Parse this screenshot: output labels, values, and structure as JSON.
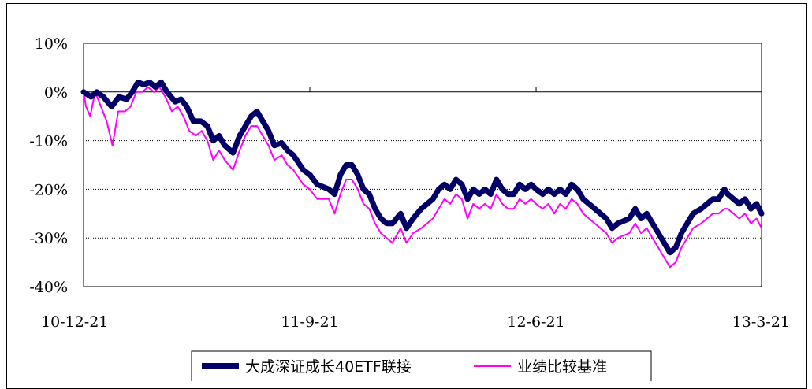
{
  "chart_data": {
    "type": "line",
    "title": "",
    "xlabel": "",
    "ylabel": "",
    "y_unit": "%",
    "ylim": [
      -40,
      10
    ],
    "yticks": [
      10,
      0,
      -10,
      -20,
      -30,
      -40
    ],
    "ytick_labels": [
      "10%",
      "0%",
      "-10%",
      "-20%",
      "-30%",
      "-40%"
    ],
    "xlim": [
      "2010-12-21",
      "2013-03-21"
    ],
    "xticks": [
      "2010-12-21",
      "2011-09-21",
      "2012-06-21",
      "2013-03-21"
    ],
    "xtick_labels": [
      "10-12-21",
      "11-9-21",
      "12-6-21",
      "13-3-21"
    ],
    "grid": {
      "horizontal": true,
      "vertical": false
    },
    "legend_position": "bottom",
    "series": [
      {
        "name": "大成深证成长40ETF联接",
        "color": "#000066",
        "points": [
          [
            "2010-12-21",
            0
          ],
          [
            "2010-12-30",
            -1
          ],
          [
            "2011-01-06",
            0
          ],
          [
            "2011-01-14",
            -1
          ],
          [
            "2011-01-24",
            -3
          ],
          [
            "2011-02-02",
            -1
          ],
          [
            "2011-02-11",
            -1.5
          ],
          [
            "2011-02-18",
            0
          ],
          [
            "2011-02-25",
            2
          ],
          [
            "2011-03-04",
            1.5
          ],
          [
            "2011-03-11",
            2
          ],
          [
            "2011-03-18",
            1
          ],
          [
            "2011-03-25",
            2
          ],
          [
            "2011-04-01",
            0
          ],
          [
            "2011-04-11",
            -2
          ],
          [
            "2011-04-18",
            -1.5
          ],
          [
            "2011-04-25",
            -3
          ],
          [
            "2011-05-03",
            -6
          ],
          [
            "2011-05-12",
            -6
          ],
          [
            "2011-05-20",
            -7
          ],
          [
            "2011-05-27",
            -10
          ],
          [
            "2011-06-03",
            -9
          ],
          [
            "2011-06-10",
            -11
          ],
          [
            "2011-06-20",
            -12.5
          ],
          [
            "2011-06-28",
            -9
          ],
          [
            "2011-07-05",
            -7
          ],
          [
            "2011-07-12",
            -5
          ],
          [
            "2011-07-19",
            -4
          ],
          [
            "2011-07-26",
            -6
          ],
          [
            "2011-08-02",
            -8
          ],
          [
            "2011-08-09",
            -11
          ],
          [
            "2011-08-18",
            -10.5
          ],
          [
            "2011-08-25",
            -12
          ],
          [
            "2011-09-01",
            -13
          ],
          [
            "2011-09-13",
            -16
          ],
          [
            "2011-09-21",
            -17
          ],
          [
            "2011-09-30",
            -19
          ],
          [
            "2011-10-14",
            -20
          ],
          [
            "2011-10-21",
            -21
          ],
          [
            "2011-10-28",
            -17
          ],
          [
            "2011-11-04",
            -15
          ],
          [
            "2011-11-11",
            -15
          ],
          [
            "2011-11-18",
            -17
          ],
          [
            "2011-11-25",
            -20
          ],
          [
            "2011-12-02",
            -21
          ],
          [
            "2011-12-09",
            -24
          ],
          [
            "2011-12-16",
            -26
          ],
          [
            "2011-12-23",
            -27
          ],
          [
            "2011-12-30",
            -27
          ],
          [
            "2012-01-09",
            -25
          ],
          [
            "2012-01-16",
            -28
          ],
          [
            "2012-01-24",
            -26
          ],
          [
            "2012-02-03",
            -24
          ],
          [
            "2012-02-10",
            -23
          ],
          [
            "2012-02-17",
            -22
          ],
          [
            "2012-02-24",
            -20
          ],
          [
            "2012-03-02",
            -19
          ],
          [
            "2012-03-09",
            -20
          ],
          [
            "2012-03-16",
            -18
          ],
          [
            "2012-03-23",
            -19
          ],
          [
            "2012-03-30",
            -22
          ],
          [
            "2012-04-06",
            -20
          ],
          [
            "2012-04-13",
            -21
          ],
          [
            "2012-04-20",
            -20
          ],
          [
            "2012-04-27",
            -21
          ],
          [
            "2012-05-04",
            -18
          ],
          [
            "2012-05-11",
            -20
          ],
          [
            "2012-05-18",
            -21
          ],
          [
            "2012-05-25",
            -21
          ],
          [
            "2012-06-01",
            -19
          ],
          [
            "2012-06-08",
            -20
          ],
          [
            "2012-06-15",
            -19
          ],
          [
            "2012-06-21",
            -20
          ],
          [
            "2012-06-29",
            -21
          ],
          [
            "2012-07-06",
            -20
          ],
          [
            "2012-07-13",
            -21
          ],
          [
            "2012-07-20",
            -20
          ],
          [
            "2012-07-27",
            -21
          ],
          [
            "2012-08-03",
            -19
          ],
          [
            "2012-08-10",
            -20
          ],
          [
            "2012-08-17",
            -22
          ],
          [
            "2012-08-24",
            -23
          ],
          [
            "2012-08-31",
            -24
          ],
          [
            "2012-09-07",
            -25
          ],
          [
            "2012-09-14",
            -26
          ],
          [
            "2012-09-21",
            -28
          ],
          [
            "2012-09-28",
            -27
          ],
          [
            "2012-10-12",
            -26
          ],
          [
            "2012-10-19",
            -24
          ],
          [
            "2012-10-26",
            -26
          ],
          [
            "2012-11-02",
            -25
          ],
          [
            "2012-11-09",
            -27
          ],
          [
            "2012-11-16",
            -29
          ],
          [
            "2012-11-23",
            -31
          ],
          [
            "2012-11-30",
            -33
          ],
          [
            "2012-12-07",
            -32
          ],
          [
            "2012-12-14",
            -29
          ],
          [
            "2012-12-21",
            -27
          ],
          [
            "2012-12-28",
            -25
          ],
          [
            "2013-01-07",
            -24
          ],
          [
            "2013-01-14",
            -23
          ],
          [
            "2013-01-21",
            -22
          ],
          [
            "2013-01-28",
            -22
          ],
          [
            "2013-02-04",
            -20
          ],
          [
            "2013-02-08",
            -21
          ],
          [
            "2013-02-22",
            -23
          ],
          [
            "2013-03-01",
            -22
          ],
          [
            "2013-03-08",
            -24
          ],
          [
            "2013-03-15",
            -23
          ],
          [
            "2013-03-21",
            -25
          ]
        ]
      },
      {
        "name": "业绩比较基准",
        "color": "#FF00FF",
        "points": [
          [
            "2010-12-21",
            0
          ],
          [
            "2010-12-24",
            -3
          ],
          [
            "2010-12-29",
            -5
          ],
          [
            "2011-01-04",
            0
          ],
          [
            "2011-01-11",
            -3
          ],
          [
            "2011-01-18",
            -6
          ],
          [
            "2011-01-25",
            -11
          ],
          [
            "2011-02-01",
            -4
          ],
          [
            "2011-02-09",
            -4
          ],
          [
            "2011-02-16",
            -3
          ],
          [
            "2011-02-23",
            0
          ],
          [
            "2011-03-02",
            0
          ],
          [
            "2011-03-09",
            1
          ],
          [
            "2011-03-16",
            0
          ],
          [
            "2011-03-23",
            1
          ],
          [
            "2011-03-30",
            -1
          ],
          [
            "2011-04-07",
            -4
          ],
          [
            "2011-04-14",
            -3
          ],
          [
            "2011-04-21",
            -5
          ],
          [
            "2011-04-28",
            -8
          ],
          [
            "2011-05-06",
            -9
          ],
          [
            "2011-05-13",
            -8
          ],
          [
            "2011-05-20",
            -10
          ],
          [
            "2011-05-27",
            -14
          ],
          [
            "2011-06-03",
            -12
          ],
          [
            "2011-06-10",
            -14
          ],
          [
            "2011-06-20",
            -16
          ],
          [
            "2011-06-28",
            -12
          ],
          [
            "2011-07-05",
            -9
          ],
          [
            "2011-07-12",
            -7
          ],
          [
            "2011-07-19",
            -7
          ],
          [
            "2011-07-26",
            -9
          ],
          [
            "2011-08-02",
            -11
          ],
          [
            "2011-08-09",
            -14
          ],
          [
            "2011-08-18",
            -13
          ],
          [
            "2011-08-25",
            -15
          ],
          [
            "2011-09-01",
            -16
          ],
          [
            "2011-09-13",
            -19
          ],
          [
            "2011-09-21",
            -20
          ],
          [
            "2011-09-30",
            -22
          ],
          [
            "2011-10-14",
            -22
          ],
          [
            "2011-10-21",
            -25
          ],
          [
            "2011-10-28",
            -21
          ],
          [
            "2011-11-04",
            -18
          ],
          [
            "2011-11-11",
            -18
          ],
          [
            "2011-11-18",
            -20
          ],
          [
            "2011-11-25",
            -23
          ],
          [
            "2011-12-02",
            -24
          ],
          [
            "2011-12-09",
            -27
          ],
          [
            "2011-12-16",
            -29
          ],
          [
            "2011-12-23",
            -30
          ],
          [
            "2011-12-30",
            -31
          ],
          [
            "2012-01-09",
            -28
          ],
          [
            "2012-01-16",
            -31
          ],
          [
            "2012-01-24",
            -29
          ],
          [
            "2012-02-03",
            -28
          ],
          [
            "2012-02-10",
            -27
          ],
          [
            "2012-02-17",
            -26
          ],
          [
            "2012-02-24",
            -24
          ],
          [
            "2012-03-02",
            -22
          ],
          [
            "2012-03-09",
            -23
          ],
          [
            "2012-03-16",
            -21
          ],
          [
            "2012-03-23",
            -22
          ],
          [
            "2012-03-30",
            -26
          ],
          [
            "2012-04-06",
            -23
          ],
          [
            "2012-04-13",
            -24
          ],
          [
            "2012-04-20",
            -23
          ],
          [
            "2012-04-27",
            -24
          ],
          [
            "2012-05-04",
            -21
          ],
          [
            "2012-05-11",
            -23
          ],
          [
            "2012-05-18",
            -24
          ],
          [
            "2012-05-25",
            -24
          ],
          [
            "2012-06-01",
            -22
          ],
          [
            "2012-06-08",
            -23
          ],
          [
            "2012-06-15",
            -22
          ],
          [
            "2012-06-21",
            -23
          ],
          [
            "2012-06-29",
            -24
          ],
          [
            "2012-07-06",
            -23
          ],
          [
            "2012-07-13",
            -25
          ],
          [
            "2012-07-20",
            -23
          ],
          [
            "2012-07-27",
            -24
          ],
          [
            "2012-08-03",
            -22
          ],
          [
            "2012-08-10",
            -23
          ],
          [
            "2012-08-17",
            -25
          ],
          [
            "2012-08-24",
            -26
          ],
          [
            "2012-08-31",
            -27
          ],
          [
            "2012-09-07",
            -28
          ],
          [
            "2012-09-14",
            -29
          ],
          [
            "2012-09-21",
            -31
          ],
          [
            "2012-09-28",
            -30
          ],
          [
            "2012-10-12",
            -29
          ],
          [
            "2012-10-19",
            -27
          ],
          [
            "2012-10-26",
            -29
          ],
          [
            "2012-11-02",
            -28
          ],
          [
            "2012-11-09",
            -30
          ],
          [
            "2012-11-16",
            -32
          ],
          [
            "2012-11-23",
            -34
          ],
          [
            "2012-11-30",
            -36
          ],
          [
            "2012-12-07",
            -35
          ],
          [
            "2012-12-14",
            -32
          ],
          [
            "2012-12-21",
            -30
          ],
          [
            "2012-12-28",
            -28
          ],
          [
            "2013-01-07",
            -27
          ],
          [
            "2013-01-14",
            -26
          ],
          [
            "2013-01-21",
            -25
          ],
          [
            "2013-01-28",
            -25
          ],
          [
            "2013-02-04",
            -24
          ],
          [
            "2013-02-08",
            -24
          ],
          [
            "2013-02-22",
            -26
          ],
          [
            "2013-03-01",
            -25
          ],
          [
            "2013-03-08",
            -27
          ],
          [
            "2013-03-15",
            -26
          ],
          [
            "2013-03-21",
            -28
          ]
        ]
      }
    ]
  }
}
